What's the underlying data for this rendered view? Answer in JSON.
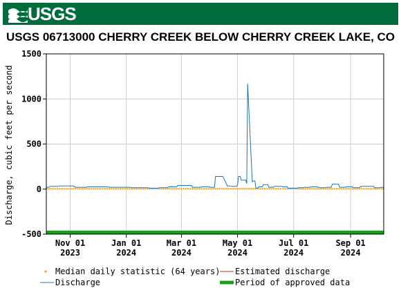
{
  "banner": {
    "logo_text": "USGS",
    "color": "#006c3b"
  },
  "chart_data": {
    "type": "line",
    "title": "USGS 06713000 CHERRY CREEK BELOW CHERRY CREEK LAKE, CO",
    "ylabel": "Discharge, cubic feet per second",
    "xlabel": "",
    "ylim": [
      -500,
      1500
    ],
    "xlim": [
      "2023-10-06",
      "2024-10-07"
    ],
    "yticks": [
      -500,
      0,
      500,
      1000,
      1500
    ],
    "xticks": [
      {
        "date": "2023-11-01",
        "label1": "Nov 01",
        "label2": "2023"
      },
      {
        "date": "2024-01-01",
        "label1": "Jan 01",
        "label2": "2024"
      },
      {
        "date": "2024-03-01",
        "label1": "Mar 01",
        "label2": "2024"
      },
      {
        "date": "2024-05-01",
        "label1": "May 01",
        "label2": "2024"
      },
      {
        "date": "2024-07-01",
        "label1": "Jul 01",
        "label2": "2024"
      },
      {
        "date": "2024-09-01",
        "label1": "Sep 01",
        "label2": "2024"
      }
    ],
    "grid": true,
    "legend_position": "bottom",
    "series": [
      {
        "name": "Median daily statistic (64 years)",
        "style": "dots",
        "color": "#f5a300",
        "x": [
          "2023-10-06",
          "2024-10-07"
        ],
        "y": [
          5,
          5
        ]
      },
      {
        "name": "Discharge",
        "style": "line",
        "color": "#1a74b8",
        "x": [
          "2023-10-06",
          "2023-10-09",
          "2023-10-10",
          "2023-10-19",
          "2023-10-20",
          "2023-11-05",
          "2023-11-06",
          "2023-11-19",
          "2023-11-20",
          "2023-12-12",
          "2023-12-13",
          "2024-01-05",
          "2024-01-06",
          "2024-01-25",
          "2024-01-26",
          "2024-02-05",
          "2024-02-06",
          "2024-02-15",
          "2024-02-16",
          "2024-02-25",
          "2024-02-26",
          "2024-03-12",
          "2024-03-13",
          "2024-03-22",
          "2024-03-23",
          "2024-03-31",
          "2024-04-01",
          "2024-04-06",
          "2024-04-07",
          "2024-04-15",
          "2024-04-20",
          "2024-04-23",
          "2024-04-24",
          "2024-04-30",
          "2024-05-01",
          "2024-05-02",
          "2024-05-04",
          "2024-05-05",
          "2024-05-10",
          "2024-05-11",
          "2024-05-12",
          "2024-05-17",
          "2024-05-18",
          "2024-05-20",
          "2024-05-21",
          "2024-05-23",
          "2024-05-24",
          "2024-05-26",
          "2024-05-28",
          "2024-05-29",
          "2024-06-03",
          "2024-06-04",
          "2024-06-09",
          "2024-06-10",
          "2024-06-18",
          "2024-06-19",
          "2024-06-24",
          "2024-06-25",
          "2024-07-05",
          "2024-07-06",
          "2024-07-12",
          "2024-07-13",
          "2024-07-19",
          "2024-07-20",
          "2024-07-26",
          "2024-07-27",
          "2024-07-29",
          "2024-07-30",
          "2024-08-05",
          "2024-08-06",
          "2024-08-11",
          "2024-08-12",
          "2024-08-19",
          "2024-08-20",
          "2024-08-26",
          "2024-08-27",
          "2024-09-03",
          "2024-09-04",
          "2024-09-11",
          "2024-09-12",
          "2024-09-26",
          "2024-09-27",
          "2024-10-03",
          "2024-10-04",
          "2024-10-07"
        ],
        "y": [
          20,
          20,
          30,
          30,
          35,
          35,
          20,
          20,
          25,
          25,
          20,
          20,
          15,
          15,
          10,
          10,
          15,
          15,
          25,
          25,
          40,
          40,
          20,
          20,
          25,
          25,
          20,
          20,
          140,
          140,
          35,
          35,
          30,
          30,
          45,
          140,
          140,
          100,
          100,
          60,
          1170,
          80,
          90,
          90,
          10,
          10,
          25,
          25,
          25,
          50,
          50,
          20,
          20,
          30,
          30,
          25,
          25,
          10,
          10,
          15,
          15,
          20,
          20,
          25,
          25,
          20,
          20,
          15,
          15,
          20,
          20,
          55,
          55,
          20,
          20,
          25,
          25,
          15,
          15,
          30,
          30,
          15,
          15,
          20,
          20
        ]
      },
      {
        "name": "Estimated discharge",
        "style": "line",
        "color": "#c0282d",
        "x": [],
        "y": []
      },
      {
        "name": "Period of approved data",
        "style": "band",
        "color": "#1a9e1a",
        "x": [
          "2023-10-06",
          "2024-10-07"
        ],
        "y": [
          -480,
          -480
        ]
      }
    ]
  }
}
